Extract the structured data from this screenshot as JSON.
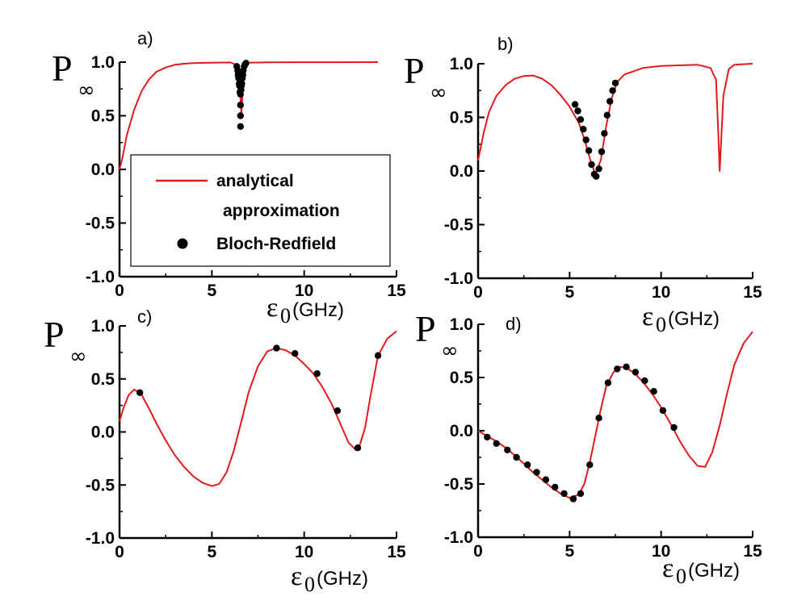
{
  "figure": {
    "x_axis_label": "(GHz)",
    "x_axis_symbol": "ε",
    "x_axis_subscript": "0",
    "y_axis_symbol": "P",
    "y_axis_subscript": "∞",
    "colors": {
      "analytical": "#e31a1c",
      "bloch_redfield": "#000000",
      "axis": "#000000"
    }
  },
  "legend": {
    "analytical_line1": "analytical",
    "analytical_line2": "approximation",
    "bloch_redfield": "Bloch-Redfield"
  },
  "chart_data": [
    {
      "type": "line",
      "panel": "a)",
      "xlabel": "ε0(GHz)",
      "ylabel": "P∞",
      "xlim": [
        0,
        15
      ],
      "ylim": [
        -1.0,
        1.0
      ],
      "xticks": [
        "0",
        "5",
        "10",
        "15"
      ],
      "yticks": [
        "-1.0",
        "-0.5",
        "0.0",
        "0.5",
        "1.0"
      ],
      "series": [
        {
          "name": "analytical approximation",
          "style": "line",
          "x": [
            0,
            0.15,
            0.4,
            0.8,
            1.2,
            1.6,
            2.0,
            2.5,
            3.0,
            3.5,
            4.0,
            5.0,
            6.0,
            6.4,
            6.5,
            6.6,
            6.7,
            6.8,
            7.0,
            8.0,
            10.0,
            12.0,
            14.0
          ],
          "y": [
            0.0,
            0.1,
            0.32,
            0.56,
            0.73,
            0.84,
            0.91,
            0.95,
            0.975,
            0.985,
            0.99,
            0.995,
            0.997,
            0.97,
            0.82,
            0.52,
            0.82,
            0.97,
            0.995,
            0.998,
            0.999,
            0.999,
            1.0
          ]
        },
        {
          "name": "Bloch-Redfield",
          "style": "markers",
          "x": [
            6.35,
            6.4,
            6.45,
            6.5,
            6.55,
            6.6,
            6.65,
            6.7,
            6.75,
            6.8,
            6.85,
            6.42,
            6.48,
            6.52,
            6.58,
            6.62,
            6.68,
            6.55,
            6.55,
            6.55
          ],
          "y": [
            0.96,
            0.92,
            0.85,
            0.78,
            0.7,
            0.78,
            0.85,
            0.92,
            0.96,
            0.98,
            0.99,
            0.88,
            0.8,
            0.72,
            0.74,
            0.8,
            0.88,
            0.6,
            0.5,
            0.4
          ]
        }
      ]
    },
    {
      "type": "line",
      "panel": "b)",
      "xlabel": "ε0(GHz)",
      "ylabel": "P∞",
      "xlim": [
        0,
        15
      ],
      "ylim": [
        -1.0,
        1.0
      ],
      "xticks": [
        "0",
        "5",
        "10",
        "15"
      ],
      "yticks": [
        "-1.0",
        "-0.5",
        "0.0",
        "0.5",
        "1.0"
      ],
      "series": [
        {
          "name": "analytical approximation",
          "style": "line",
          "x": [
            0,
            0.3,
            0.6,
            1.0,
            1.5,
            2.0,
            2.5,
            3.0,
            3.5,
            4.0,
            4.5,
            5.0,
            5.5,
            5.8,
            6.1,
            6.4,
            6.7,
            7.0,
            7.3,
            7.6,
            8.0,
            9.0,
            10.0,
            11.0,
            12.0,
            12.7,
            13.0,
            13.1,
            13.2,
            13.4,
            13.7,
            14.0,
            15.0
          ],
          "y": [
            0.1,
            0.35,
            0.55,
            0.7,
            0.8,
            0.86,
            0.885,
            0.89,
            0.86,
            0.8,
            0.71,
            0.6,
            0.45,
            0.3,
            0.12,
            -0.03,
            0.1,
            0.42,
            0.68,
            0.83,
            0.9,
            0.96,
            0.98,
            0.985,
            0.99,
            0.96,
            0.85,
            0.45,
            0.0,
            0.7,
            0.95,
            0.99,
            1.0
          ]
        },
        {
          "name": "Bloch-Redfield",
          "style": "markers",
          "x": [
            5.3,
            5.45,
            5.6,
            5.75,
            5.9,
            6.05,
            6.2,
            6.35,
            6.45,
            6.6,
            6.75,
            6.9,
            7.05,
            7.2,
            7.35,
            7.5
          ],
          "y": [
            0.62,
            0.56,
            0.48,
            0.39,
            0.29,
            0.19,
            0.06,
            -0.03,
            -0.05,
            0.02,
            0.18,
            0.35,
            0.52,
            0.65,
            0.75,
            0.82
          ]
        }
      ]
    },
    {
      "type": "line",
      "panel": "c)",
      "xlabel": "ε0(GHz)",
      "ylabel": "P∞",
      "xlim": [
        0,
        15
      ],
      "ylim": [
        -1.0,
        1.0
      ],
      "xticks": [
        "0",
        "5",
        "10",
        "15"
      ],
      "yticks": [
        "-1.0",
        "-0.5",
        "0.0",
        "0.5",
        "1.0"
      ],
      "series": [
        {
          "name": "analytical approximation",
          "style": "line",
          "x": [
            0,
            0.2,
            0.5,
            0.8,
            1.2,
            1.6,
            2.0,
            2.5,
            3.0,
            3.5,
            4.0,
            4.5,
            5.0,
            5.4,
            5.8,
            6.2,
            6.6,
            7.0,
            7.5,
            8.0,
            8.5,
            9.0,
            9.5,
            10.0,
            10.5,
            11.0,
            11.5,
            12.0,
            12.4,
            12.8,
            13.0,
            13.3,
            13.6,
            14.0,
            14.5,
            15.0
          ],
          "y": [
            0.1,
            0.22,
            0.35,
            0.4,
            0.35,
            0.22,
            0.08,
            -0.08,
            -0.22,
            -0.33,
            -0.42,
            -0.48,
            -0.51,
            -0.49,
            -0.38,
            -0.17,
            0.1,
            0.38,
            0.62,
            0.76,
            0.79,
            0.77,
            0.72,
            0.64,
            0.55,
            0.42,
            0.26,
            0.06,
            -0.1,
            -0.17,
            -0.13,
            0.04,
            0.35,
            0.72,
            0.88,
            0.95
          ]
        },
        {
          "name": "Bloch-Redfield",
          "style": "markers",
          "x": [
            1.1,
            8.5,
            9.5,
            10.7,
            11.8,
            12.9,
            14.0
          ],
          "y": [
            0.37,
            0.79,
            0.74,
            0.55,
            0.2,
            -0.15,
            0.72
          ]
        }
      ]
    },
    {
      "type": "line",
      "panel": "d)",
      "xlabel": "ε0(GHz)",
      "ylabel": "P∞",
      "xlim": [
        0,
        15
      ],
      "ylim": [
        -1.0,
        1.0
      ],
      "xticks": [
        "0",
        "5",
        "10",
        "15"
      ],
      "yticks": [
        "-1.0",
        "-0.5",
        "0.0",
        "0.5",
        "1.0"
      ],
      "series": [
        {
          "name": "analytical approximation",
          "style": "line",
          "x": [
            0,
            0.5,
            1.0,
            1.5,
            2.0,
            2.5,
            3.0,
            3.5,
            4.0,
            4.5,
            5.0,
            5.5,
            5.8,
            6.1,
            6.4,
            6.7,
            7.0,
            7.4,
            7.8,
            8.2,
            8.6,
            9.0,
            9.5,
            10.0,
            10.5,
            11.0,
            11.5,
            12.0,
            12.4,
            12.8,
            13.2,
            13.6,
            14.0,
            14.5,
            15.0
          ],
          "y": [
            0.0,
            -0.05,
            -0.1,
            -0.16,
            -0.23,
            -0.31,
            -0.39,
            -0.46,
            -0.53,
            -0.59,
            -0.63,
            -0.6,
            -0.5,
            -0.3,
            -0.05,
            0.2,
            0.42,
            0.55,
            0.6,
            0.58,
            0.53,
            0.46,
            0.35,
            0.22,
            0.07,
            -0.09,
            -0.23,
            -0.33,
            -0.34,
            -0.2,
            0.05,
            0.35,
            0.62,
            0.82,
            0.93
          ]
        },
        {
          "name": "Bloch-Redfield",
          "style": "markers",
          "x": [
            0.5,
            1.0,
            1.6,
            2.1,
            2.7,
            3.2,
            3.7,
            4.2,
            4.7,
            5.2,
            5.6,
            6.1,
            6.6,
            7.1,
            7.6,
            8.1,
            8.6,
            9.1,
            9.6,
            10.1,
            10.7
          ],
          "y": [
            -0.06,
            -0.12,
            -0.18,
            -0.25,
            -0.32,
            -0.39,
            -0.46,
            -0.53,
            -0.59,
            -0.64,
            -0.59,
            -0.32,
            0.12,
            0.45,
            0.58,
            0.6,
            0.55,
            0.47,
            0.37,
            0.19,
            0.03
          ]
        }
      ]
    }
  ]
}
